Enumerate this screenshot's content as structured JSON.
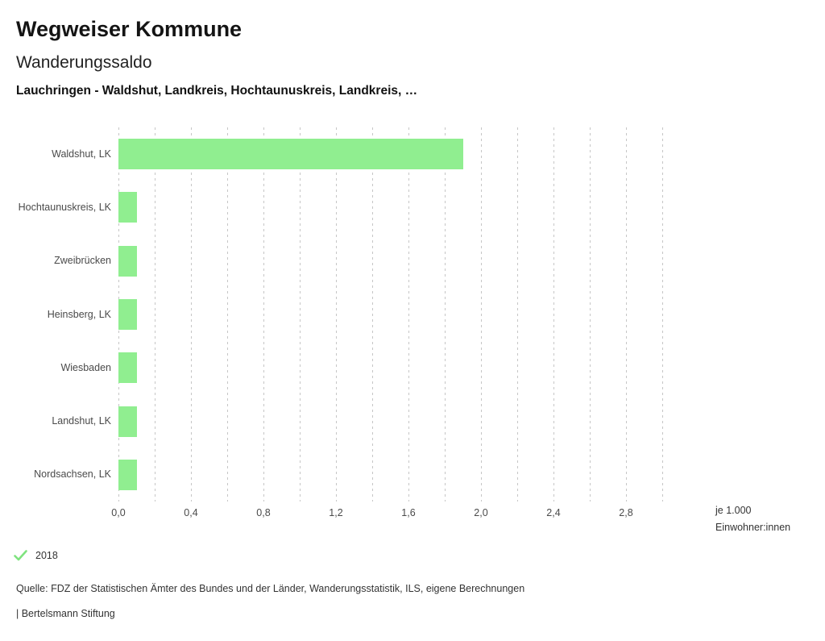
{
  "header": {
    "title": "Wegweiser Kommune",
    "subtitle": "Wanderungssaldo",
    "comparison": "Lauchringen - Waldshut, Landkreis, Hochtaunuskreis, Landkreis, …"
  },
  "chart_data": {
    "type": "bar",
    "orientation": "horizontal",
    "categories": [
      "Waldshut, LK",
      "Hochtaunuskreis, LK",
      "Zweibrücken",
      "Heinsberg, LK",
      "Wiesbaden",
      "Landshut, LK",
      "Nordsachsen, LK"
    ],
    "series": [
      {
        "name": "2018",
        "values": [
          1.9,
          0.1,
          0.1,
          0.1,
          0.1,
          0.1,
          0.1
        ]
      }
    ],
    "xlim": [
      0,
      3.0
    ],
    "grid_step": 0.2,
    "grid": "dotted-vertical",
    "x_ticks": [
      {
        "value": 0.0,
        "label": "0,0"
      },
      {
        "value": 0.4,
        "label": "0,4"
      },
      {
        "value": 0.8,
        "label": "0,8"
      },
      {
        "value": 1.2,
        "label": "1,2"
      },
      {
        "value": 1.6,
        "label": "1,6"
      },
      {
        "value": 2.0,
        "label": "2,0"
      },
      {
        "value": 2.4,
        "label": "2,4"
      },
      {
        "value": 2.8,
        "label": "2,8"
      }
    ],
    "unit_label_line1": "je 1.000",
    "unit_label_line2": "Einwohner:innen",
    "legend_position": "bottom-left"
  },
  "legend": {
    "items": [
      {
        "label": "2018",
        "checked": true
      }
    ]
  },
  "footer": {
    "source": "Quelle: FDZ der Statistischen Ämter des Bundes und der Länder, Wanderungsstatistik, ILS, eigene Berechnungen",
    "branding": "| Bertelsmann Stiftung"
  },
  "colors": {
    "bar": "#90ee90",
    "legend_check": "#7fe37f",
    "grid": "#c6c6c6",
    "text_dark": "#141414",
    "text_gray": "#4a4a4a"
  }
}
